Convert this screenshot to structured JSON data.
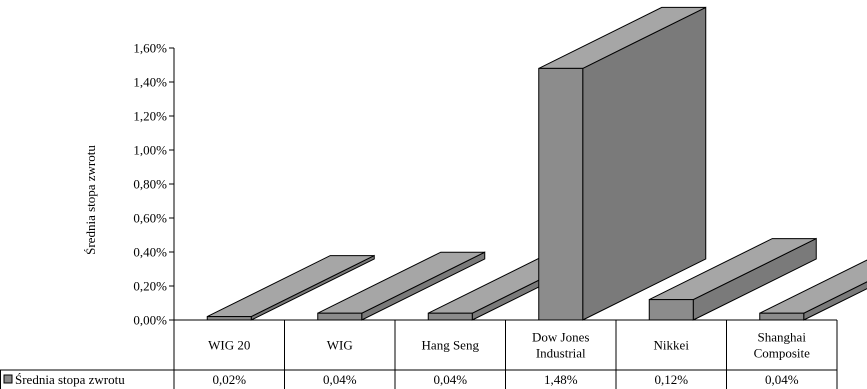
{
  "chart_data": {
    "type": "bar",
    "categories": [
      "WIG 20",
      "WIG",
      "Hang Seng",
      "Dow Jones Industrial",
      "Nikkei",
      "Shanghai Composite"
    ],
    "category_lines": [
      [
        "WIG 20"
      ],
      [
        "WIG"
      ],
      [
        "Hang Seng"
      ],
      [
        "Dow Jones",
        "Industrial"
      ],
      [
        "Nikkei"
      ],
      [
        "Shanghai",
        "Composite"
      ]
    ],
    "series": [
      {
        "name": "Średnia stopa zwrotu",
        "values": [
          0.02,
          0.04,
          0.04,
          1.48,
          0.12,
          0.04
        ]
      }
    ],
    "value_labels": [
      "0,02%",
      "0,04%",
      "0,04%",
      "1,48%",
      "0,12%",
      "0,04%"
    ],
    "ylabel": "Średnia stopa zwrotu",
    "ylim": [
      0,
      1.6
    ],
    "yticks": [
      0,
      0.2,
      0.4,
      0.6,
      0.8,
      1.0,
      1.2,
      1.4,
      1.6
    ],
    "ytick_labels": [
      "0,00%",
      "0,20%",
      "0,40%",
      "0,60%",
      "0,80%",
      "1,00%",
      "1,20%",
      "1,40%",
      "1,60%"
    ],
    "style": "3d-bar-with-data-table",
    "legend_placement": "data-table-left",
    "colors": {
      "bar_front": "#8c8c8c",
      "bar_top": "#a6a6a6",
      "bar_side": "#7a7a7a",
      "stroke": "#000000"
    }
  }
}
